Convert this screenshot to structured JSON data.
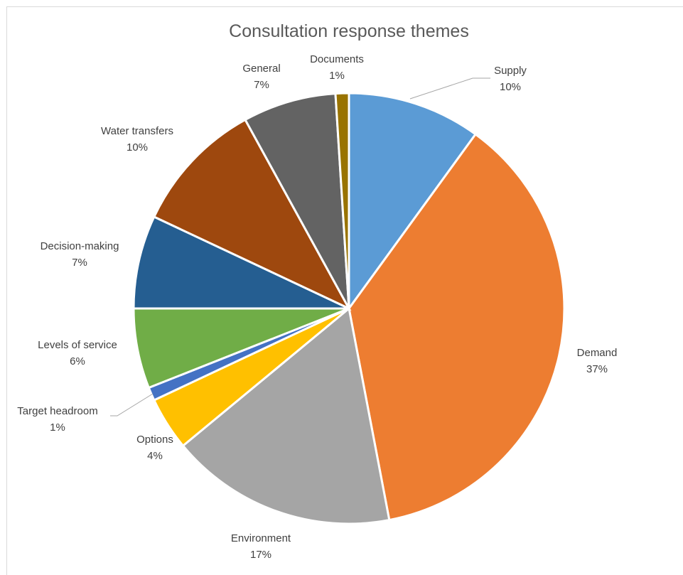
{
  "chart_data": {
    "type": "pie",
    "title": "Consultation response themes",
    "slices": [
      {
        "label": "Supply",
        "value": 10,
        "display": "10%",
        "color": "#5b9bd5"
      },
      {
        "label": "Demand",
        "value": 37,
        "display": "37%",
        "color": "#ed7d31"
      },
      {
        "label": "Environment",
        "value": 17,
        "display": "17%",
        "color": "#a5a5a5"
      },
      {
        "label": "Options",
        "value": 4,
        "display": "4%",
        "color": "#ffc000"
      },
      {
        "label": "Target headroom",
        "value": 1,
        "display": "1%",
        "color": "#4472c4"
      },
      {
        "label": "Levels of service",
        "value": 6,
        "display": "6%",
        "color": "#70ad47"
      },
      {
        "label": "Decision-making",
        "value": 7,
        "display": "7%",
        "color": "#255e91"
      },
      {
        "label": "Water transfers",
        "value": 10,
        "display": "10%",
        "color": "#9e480e"
      },
      {
        "label": "General",
        "value": 7,
        "display": "7%",
        "color": "#636363"
      },
      {
        "label": "Documents",
        "value": 1,
        "display": "1%",
        "color": "#997300"
      }
    ],
    "legend": "none",
    "start_angle": "12 o'clock, clockwise"
  }
}
